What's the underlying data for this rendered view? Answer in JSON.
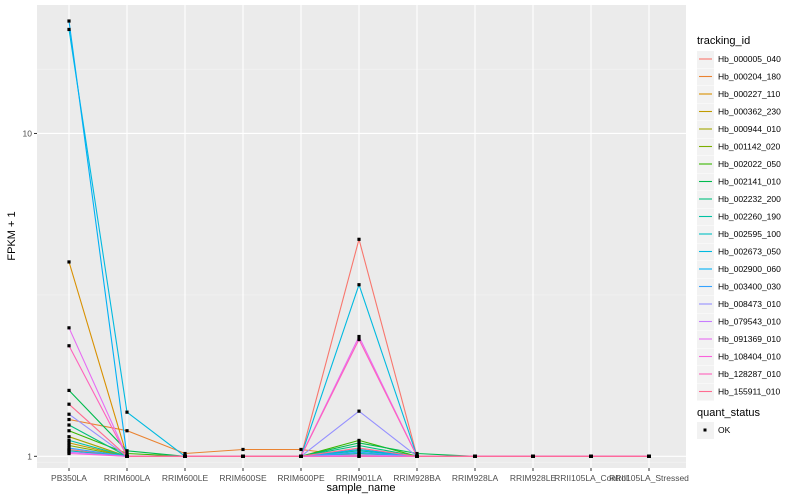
{
  "chart_data": {
    "type": "line",
    "x_axis_label": "sample_name",
    "y_axis_label": "FPKM + 1",
    "y_scale": "log10",
    "ylim": [
      0.92,
      25
    ],
    "y_ticks": [
      {
        "value": 1,
        "label": "1"
      },
      {
        "value": 10,
        "label": "10"
      }
    ],
    "categories": [
      "PB350LA",
      "RRIM600LA",
      "RRIM600LE",
      "RRIM600SE",
      "RRIM600PE",
      "RRIM901LA",
      "RRIM928BA",
      "RRIM928LA",
      "RRIM928LE",
      "RRII105LA_Control",
      "RRII105LA_Stressed"
    ],
    "grid": true,
    "legend_position": "right",
    "legend_title": "tracking_id",
    "series": [
      {
        "name": "Hb_000005_040",
        "color": "#f8766d",
        "values": [
          1.05,
          1.0,
          1.0,
          1.0,
          1.0,
          4.7,
          1.0,
          1.0,
          1.0,
          1.0,
          1.0
        ]
      },
      {
        "name": "Hb_000204_180",
        "color": "#ea8331",
        "values": [
          1.3,
          1.2,
          1.02,
          1.05,
          1.05,
          1.0,
          1.0,
          1.0,
          1.0,
          1.0,
          1.0
        ]
      },
      {
        "name": "Hb_000227_110",
        "color": "#d89000",
        "values": [
          4.0,
          1.0,
          1.0,
          1.0,
          1.0,
          1.0,
          1.0,
          1.0,
          1.0,
          1.0,
          1.0
        ]
      },
      {
        "name": "Hb_000362_230",
        "color": "#c09b00",
        "values": [
          1.1,
          1.0,
          1.0,
          1.0,
          1.0,
          1.0,
          1.0,
          1.0,
          1.0,
          1.0,
          1.0
        ]
      },
      {
        "name": "Hb_000944_010",
        "color": "#a3a500",
        "values": [
          1.15,
          1.0,
          1.0,
          1.0,
          1.0,
          1.05,
          1.0,
          1.0,
          1.0,
          1.0,
          1.0
        ]
      },
      {
        "name": "Hb_001142_020",
        "color": "#7cae00",
        "values": [
          1.08,
          1.0,
          1.0,
          1.0,
          1.0,
          1.02,
          1.0,
          1.0,
          1.0,
          1.0,
          1.0
        ]
      },
      {
        "name": "Hb_002022_050",
        "color": "#39b600",
        "values": [
          1.2,
          1.02,
          1.0,
          1.0,
          1.0,
          1.12,
          1.0,
          1.0,
          1.0,
          1.0,
          1.0
        ]
      },
      {
        "name": "Hb_002141_010",
        "color": "#00bb4e",
        "values": [
          1.6,
          1.04,
          1.0,
          1.0,
          1.0,
          1.1,
          1.02,
          1.0,
          1.0,
          1.0,
          1.0
        ]
      },
      {
        "name": "Hb_002232_200",
        "color": "#00bf7d",
        "values": [
          1.25,
          1.0,
          1.0,
          1.0,
          1.0,
          1.08,
          1.0,
          1.0,
          1.0,
          1.0,
          1.0
        ]
      },
      {
        "name": "Hb_002260_190",
        "color": "#00c1a3",
        "values": [
          1.12,
          1.0,
          1.0,
          1.0,
          1.0,
          1.04,
          1.0,
          1.0,
          1.0,
          1.0,
          1.0
        ]
      },
      {
        "name": "Hb_002595_100",
        "color": "#00bfc4",
        "values": [
          1.04,
          1.0,
          1.0,
          1.0,
          1.0,
          1.02,
          1.0,
          1.0,
          1.0,
          1.0,
          1.0
        ]
      },
      {
        "name": "Hb_002673_050",
        "color": "#00bae0",
        "values": [
          21.0,
          1.37,
          1.0,
          1.0,
          1.0,
          3.4,
          1.0,
          1.0,
          1.0,
          1.0,
          1.0
        ]
      },
      {
        "name": "Hb_002900_060",
        "color": "#00b0f6",
        "values": [
          22.3,
          1.0,
          1.0,
          1.0,
          1.0,
          1.05,
          1.0,
          1.0,
          1.0,
          1.0,
          1.0
        ]
      },
      {
        "name": "Hb_003400_030",
        "color": "#35a2ff",
        "values": [
          1.06,
          1.0,
          1.0,
          1.0,
          1.0,
          1.03,
          1.0,
          1.0,
          1.0,
          1.0,
          1.0
        ]
      },
      {
        "name": "Hb_008473_010",
        "color": "#9590ff",
        "values": [
          1.35,
          1.0,
          1.0,
          1.0,
          1.0,
          1.38,
          1.0,
          1.0,
          1.0,
          1.0,
          1.0
        ]
      },
      {
        "name": "Hb_079543_010",
        "color": "#c77cff",
        "values": [
          1.03,
          1.0,
          1.0,
          1.0,
          1.0,
          1.01,
          1.0,
          1.0,
          1.0,
          1.0,
          1.0
        ]
      },
      {
        "name": "Hb_091369_010",
        "color": "#e76bf3",
        "values": [
          2.5,
          1.0,
          1.0,
          1.0,
          1.0,
          2.35,
          1.0,
          1.0,
          1.0,
          1.0,
          1.0
        ]
      },
      {
        "name": "Hb_108404_010",
        "color": "#fa62db",
        "values": [
          1.02,
          1.0,
          1.0,
          1.0,
          1.0,
          1.0,
          1.0,
          1.0,
          1.0,
          1.0,
          1.0
        ]
      },
      {
        "name": "Hb_128287_010",
        "color": "#ff62bc",
        "values": [
          2.2,
          1.0,
          1.0,
          1.0,
          1.0,
          2.3,
          1.0,
          1.0,
          1.0,
          1.0,
          1.0
        ]
      },
      {
        "name": "Hb_155911_010",
        "color": "#ff6c91",
        "values": [
          1.45,
          1.0,
          1.0,
          1.0,
          1.0,
          1.06,
          1.0,
          1.0,
          1.0,
          1.0,
          1.0
        ]
      }
    ],
    "shape_legend": {
      "title": "quant_status",
      "items": [
        {
          "label": "OK",
          "color": "#000000"
        }
      ]
    }
  }
}
